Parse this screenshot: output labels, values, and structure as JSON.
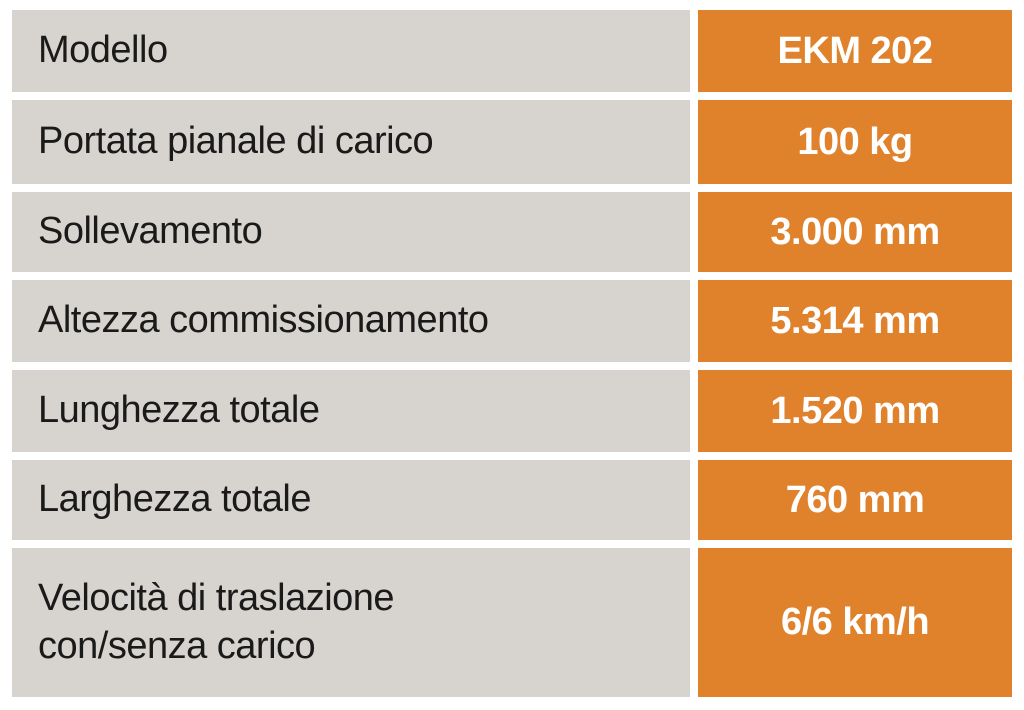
{
  "table": {
    "rows": [
      [
        "Modello",
        "EKM 202"
      ],
      [
        "Portata pianale di carico",
        "100 kg"
      ],
      [
        "Sollevamento",
        "3.000 mm"
      ],
      [
        "Altezza commissionamento",
        "5.314 mm"
      ],
      [
        "Lunghezza totale",
        "1.520 mm"
      ],
      [
        "Larghezza totale",
        "760 mm"
      ],
      [
        "Velocità di traslazione\ncon/senza carico",
        "6/6 km/h"
      ]
    ]
  }
}
